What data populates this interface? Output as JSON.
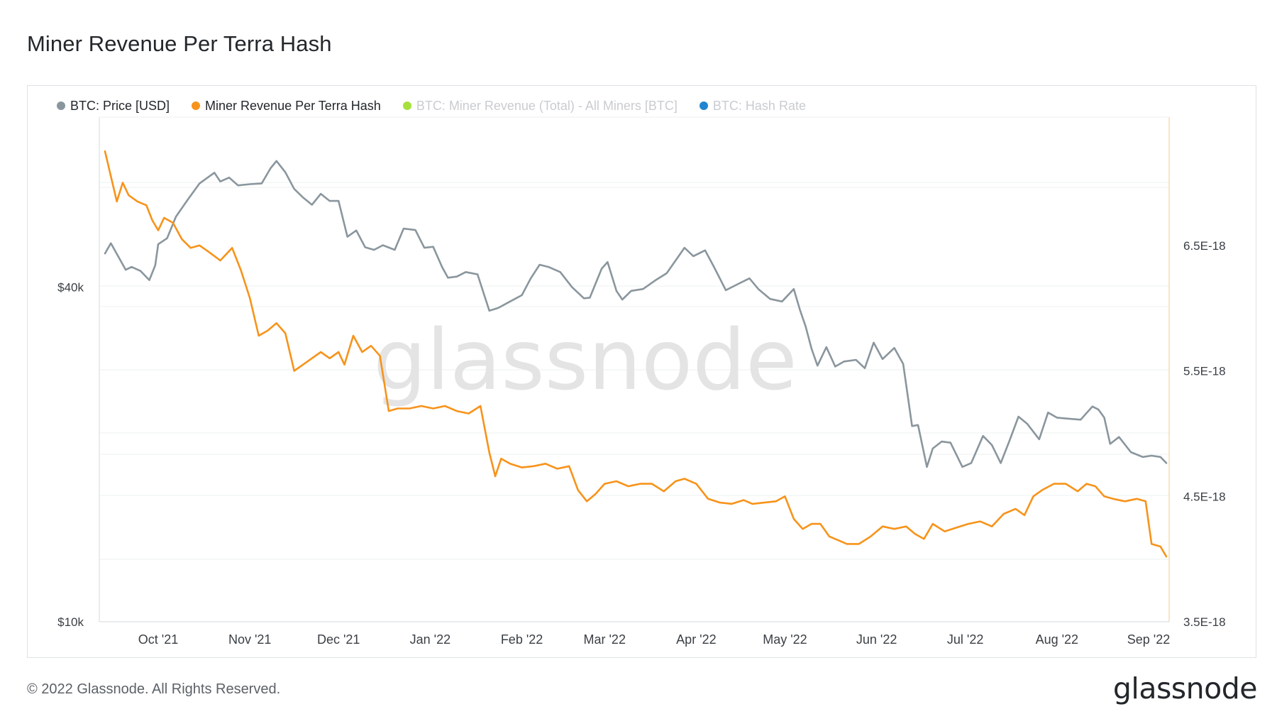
{
  "title": "Miner Revenue Per Terra Hash",
  "footer": "© 2022 Glassnode. All Rights Reserved.",
  "brand": "glassnode",
  "watermark": "glassnode",
  "legend": [
    {
      "label": "BTC: Price [USD]",
      "color": "#8a969d",
      "active": true
    },
    {
      "label": "Miner Revenue Per Terra Hash",
      "color": "#f7931a",
      "active": true
    },
    {
      "label": "BTC: Miner Revenue (Total) - All Miners [BTC]",
      "color": "#a7e03a",
      "active": false
    },
    {
      "label": "BTC: Hash Rate",
      "color": "#2185d0",
      "active": false
    }
  ],
  "chart_data": {
    "type": "line",
    "x_ticks": [
      "Oct '21",
      "Nov '21",
      "Dec '21",
      "Jan '22",
      "Feb '22",
      "Mar '22",
      "Apr '22",
      "May '22",
      "Jun '22",
      "Jul '22",
      "Aug '22",
      "Sep '22"
    ],
    "x_range": [
      "2021-09-13",
      "2022-09-07"
    ],
    "y_left": {
      "scale": "log",
      "ticks": [
        "$40k",
        "$10k"
      ],
      "range": [
        10000,
        80000
      ]
    },
    "y_right": {
      "scale": "linear",
      "ticks": [
        "6.5E-18",
        "5.5E-18",
        "4.5E-18",
        "3.5E-18"
      ],
      "range": [
        3.5e-18,
        7.5e-18
      ]
    },
    "grid": true,
    "series": [
      {
        "name": "BTC: Price [USD]",
        "axis": "left",
        "color": "#8a969d",
        "points": [
          [
            "2021-09-13",
            46000
          ],
          [
            "2021-09-15",
            48000
          ],
          [
            "2021-09-20",
            43000
          ],
          [
            "2021-09-22",
            43500
          ],
          [
            "2021-09-25",
            42800
          ],
          [
            "2021-09-28",
            41200
          ],
          [
            "2021-09-30",
            43800
          ],
          [
            "2021-10-01",
            47800
          ],
          [
            "2021-10-04",
            49000
          ],
          [
            "2021-10-07",
            53600
          ],
          [
            "2021-10-11",
            57500
          ],
          [
            "2021-10-15",
            61500
          ],
          [
            "2021-10-20",
            64300
          ],
          [
            "2021-10-22",
            62000
          ],
          [
            "2021-10-25",
            63000
          ],
          [
            "2021-10-28",
            61000
          ],
          [
            "2021-11-01",
            61300
          ],
          [
            "2021-11-05",
            61500
          ],
          [
            "2021-11-08",
            65500
          ],
          [
            "2021-11-10",
            67500
          ],
          [
            "2021-11-13",
            64400
          ],
          [
            "2021-11-16",
            60100
          ],
          [
            "2021-11-19",
            58000
          ],
          [
            "2021-11-22",
            56300
          ],
          [
            "2021-11-25",
            58900
          ],
          [
            "2021-11-28",
            57200
          ],
          [
            "2021-12-01",
            57200
          ],
          [
            "2021-12-04",
            49300
          ],
          [
            "2021-12-07",
            50600
          ],
          [
            "2021-12-10",
            47200
          ],
          [
            "2021-12-13",
            46700
          ],
          [
            "2021-12-16",
            47600
          ],
          [
            "2021-12-20",
            46700
          ],
          [
            "2021-12-23",
            51000
          ],
          [
            "2021-12-27",
            50700
          ],
          [
            "2021-12-30",
            47100
          ],
          [
            "2022-01-02",
            47300
          ],
          [
            "2022-01-05",
            43500
          ],
          [
            "2022-01-07",
            41600
          ],
          [
            "2022-01-10",
            41800
          ],
          [
            "2022-01-13",
            42600
          ],
          [
            "2022-01-17",
            42200
          ],
          [
            "2022-01-21",
            36300
          ],
          [
            "2022-01-24",
            36700
          ],
          [
            "2022-01-28",
            37700
          ],
          [
            "2022-02-01",
            38700
          ],
          [
            "2022-02-04",
            41500
          ],
          [
            "2022-02-07",
            43900
          ],
          [
            "2022-02-10",
            43500
          ],
          [
            "2022-02-14",
            42600
          ],
          [
            "2022-02-18",
            40000
          ],
          [
            "2022-02-22",
            38200
          ],
          [
            "2022-02-24",
            38300
          ],
          [
            "2022-02-28",
            43200
          ],
          [
            "2022-03-02",
            44400
          ],
          [
            "2022-03-05",
            39400
          ],
          [
            "2022-03-07",
            38000
          ],
          [
            "2022-03-10",
            39400
          ],
          [
            "2022-03-14",
            39700
          ],
          [
            "2022-03-18",
            41100
          ],
          [
            "2022-03-22",
            42400
          ],
          [
            "2022-03-28",
            47100
          ],
          [
            "2022-03-31",
            45500
          ],
          [
            "2022-04-04",
            46600
          ],
          [
            "2022-04-07",
            43500
          ],
          [
            "2022-04-11",
            39500
          ],
          [
            "2022-04-15",
            40500
          ],
          [
            "2022-04-19",
            41500
          ],
          [
            "2022-04-22",
            39700
          ],
          [
            "2022-04-26",
            38100
          ],
          [
            "2022-04-30",
            37700
          ],
          [
            "2022-05-04",
            39700
          ],
          [
            "2022-05-06",
            36500
          ],
          [
            "2022-05-08",
            34000
          ],
          [
            "2022-05-10",
            31000
          ],
          [
            "2022-05-12",
            28900
          ],
          [
            "2022-05-15",
            31200
          ],
          [
            "2022-05-18",
            28800
          ],
          [
            "2022-05-21",
            29400
          ],
          [
            "2022-05-25",
            29600
          ],
          [
            "2022-05-28",
            28600
          ],
          [
            "2022-05-31",
            31800
          ],
          [
            "2022-06-03",
            29700
          ],
          [
            "2022-06-07",
            31100
          ],
          [
            "2022-06-10",
            29100
          ],
          [
            "2022-06-13",
            22500
          ],
          [
            "2022-06-15",
            22600
          ],
          [
            "2022-06-18",
            19000
          ],
          [
            "2022-06-20",
            20500
          ],
          [
            "2022-06-23",
            21100
          ],
          [
            "2022-06-26",
            21000
          ],
          [
            "2022-06-30",
            19000
          ],
          [
            "2022-07-03",
            19300
          ],
          [
            "2022-07-07",
            21600
          ],
          [
            "2022-07-10",
            20800
          ],
          [
            "2022-07-13",
            19300
          ],
          [
            "2022-07-16",
            21200
          ],
          [
            "2022-07-19",
            23400
          ],
          [
            "2022-07-22",
            22700
          ],
          [
            "2022-07-26",
            21300
          ],
          [
            "2022-07-29",
            23800
          ],
          [
            "2022-08-01",
            23300
          ],
          [
            "2022-08-05",
            23200
          ],
          [
            "2022-08-09",
            23100
          ],
          [
            "2022-08-13",
            24400
          ],
          [
            "2022-08-15",
            24100
          ],
          [
            "2022-08-17",
            23300
          ],
          [
            "2022-08-19",
            20900
          ],
          [
            "2022-08-22",
            21500
          ],
          [
            "2022-08-26",
            20200
          ],
          [
            "2022-08-30",
            19800
          ],
          [
            "2022-09-02",
            19900
          ],
          [
            "2022-09-05",
            19800
          ],
          [
            "2022-09-07",
            19300
          ]
        ]
      },
      {
        "name": "Miner Revenue Per Terra Hash",
        "axis": "right",
        "color": "#f7931a",
        "points": [
          [
            "2021-09-13",
            7.25e-18
          ],
          [
            "2021-09-15",
            7.05e-18
          ],
          [
            "2021-09-17",
            6.85e-18
          ],
          [
            "2021-09-19",
            7e-18
          ],
          [
            "2021-09-21",
            6.9e-18
          ],
          [
            "2021-09-24",
            6.85e-18
          ],
          [
            "2021-09-27",
            6.82e-18
          ],
          [
            "2021-09-29",
            6.7e-18
          ],
          [
            "2021-10-01",
            6.62e-18
          ],
          [
            "2021-10-03",
            6.72e-18
          ],
          [
            "2021-10-06",
            6.68e-18
          ],
          [
            "2021-10-09",
            6.55e-18
          ],
          [
            "2021-10-12",
            6.48e-18
          ],
          [
            "2021-10-15",
            6.5e-18
          ],
          [
            "2021-10-18",
            6.45e-18
          ],
          [
            "2021-10-22",
            6.38e-18
          ],
          [
            "2021-10-26",
            6.48e-18
          ],
          [
            "2021-10-29",
            6.3e-18
          ],
          [
            "2021-11-01",
            6.08e-18
          ],
          [
            "2021-11-04",
            5.78e-18
          ],
          [
            "2021-11-07",
            5.82e-18
          ],
          [
            "2021-11-10",
            5.88e-18
          ],
          [
            "2021-11-13",
            5.8e-18
          ],
          [
            "2021-11-16",
            5.5e-18
          ],
          [
            "2021-11-19",
            5.55e-18
          ],
          [
            "2021-11-22",
            5.6e-18
          ],
          [
            "2021-11-25",
            5.65e-18
          ],
          [
            "2021-11-28",
            5.6e-18
          ],
          [
            "2021-12-01",
            5.65e-18
          ],
          [
            "2021-12-03",
            5.55e-18
          ],
          [
            "2021-12-06",
            5.78e-18
          ],
          [
            "2021-12-09",
            5.65e-18
          ],
          [
            "2021-12-12",
            5.7e-18
          ],
          [
            "2021-12-15",
            5.62e-18
          ],
          [
            "2021-12-18",
            5.18e-18
          ],
          [
            "2021-12-21",
            5.2e-18
          ],
          [
            "2021-12-25",
            5.2e-18
          ],
          [
            "2021-12-29",
            5.22e-18
          ],
          [
            "2022-01-02",
            5.2e-18
          ],
          [
            "2022-01-06",
            5.22e-18
          ],
          [
            "2022-01-10",
            5.18e-18
          ],
          [
            "2022-01-14",
            5.16e-18
          ],
          [
            "2022-01-18",
            5.22e-18
          ],
          [
            "2022-01-21",
            4.85e-18
          ],
          [
            "2022-01-23",
            4.66e-18
          ],
          [
            "2022-01-25",
            4.8e-18
          ],
          [
            "2022-01-28",
            4.76e-18
          ],
          [
            "2022-02-01",
            4.73e-18
          ],
          [
            "2022-02-05",
            4.74e-18
          ],
          [
            "2022-02-09",
            4.76e-18
          ],
          [
            "2022-02-13",
            4.72e-18
          ],
          [
            "2022-02-17",
            4.74e-18
          ],
          [
            "2022-02-20",
            4.55e-18
          ],
          [
            "2022-02-23",
            4.46e-18
          ],
          [
            "2022-02-26",
            4.52e-18
          ],
          [
            "2022-03-01",
            4.6e-18
          ],
          [
            "2022-03-05",
            4.62e-18
          ],
          [
            "2022-03-09",
            4.58e-18
          ],
          [
            "2022-03-13",
            4.6e-18
          ],
          [
            "2022-03-17",
            4.6e-18
          ],
          [
            "2022-03-21",
            4.54e-18
          ],
          [
            "2022-03-25",
            4.62e-18
          ],
          [
            "2022-03-28",
            4.64e-18
          ],
          [
            "2022-04-01",
            4.6e-18
          ],
          [
            "2022-04-05",
            4.48e-18
          ],
          [
            "2022-04-09",
            4.45e-18
          ],
          [
            "2022-04-13",
            4.44e-18
          ],
          [
            "2022-04-17",
            4.47e-18
          ],
          [
            "2022-04-20",
            4.44e-18
          ],
          [
            "2022-04-24",
            4.45e-18
          ],
          [
            "2022-04-28",
            4.46e-18
          ],
          [
            "2022-05-01",
            4.5e-18
          ],
          [
            "2022-05-04",
            4.32e-18
          ],
          [
            "2022-05-07",
            4.24e-18
          ],
          [
            "2022-05-10",
            4.28e-18
          ],
          [
            "2022-05-13",
            4.28e-18
          ],
          [
            "2022-05-16",
            4.18e-18
          ],
          [
            "2022-05-19",
            4.15e-18
          ],
          [
            "2022-05-22",
            4.12e-18
          ],
          [
            "2022-05-26",
            4.12e-18
          ],
          [
            "2022-05-30",
            4.18e-18
          ],
          [
            "2022-06-03",
            4.26e-18
          ],
          [
            "2022-06-07",
            4.24e-18
          ],
          [
            "2022-06-11",
            4.26e-18
          ],
          [
            "2022-06-14",
            4.2e-18
          ],
          [
            "2022-06-17",
            4.16e-18
          ],
          [
            "2022-06-20",
            4.28e-18
          ],
          [
            "2022-06-24",
            4.22e-18
          ],
          [
            "2022-06-28",
            4.25e-18
          ],
          [
            "2022-07-02",
            4.28e-18
          ],
          [
            "2022-07-06",
            4.3e-18
          ],
          [
            "2022-07-10",
            4.26e-18
          ],
          [
            "2022-07-14",
            4.36e-18
          ],
          [
            "2022-07-18",
            4.4e-18
          ],
          [
            "2022-07-21",
            4.35e-18
          ],
          [
            "2022-07-24",
            4.5e-18
          ],
          [
            "2022-07-27",
            4.55e-18
          ],
          [
            "2022-07-31",
            4.6e-18
          ],
          [
            "2022-08-04",
            4.6e-18
          ],
          [
            "2022-08-08",
            4.54e-18
          ],
          [
            "2022-08-11",
            4.6e-18
          ],
          [
            "2022-08-14",
            4.58e-18
          ],
          [
            "2022-08-17",
            4.5e-18
          ],
          [
            "2022-08-20",
            4.48e-18
          ],
          [
            "2022-08-24",
            4.46e-18
          ],
          [
            "2022-08-28",
            4.48e-18
          ],
          [
            "2022-08-31",
            4.46e-18
          ],
          [
            "2022-09-02",
            4.12e-18
          ],
          [
            "2022-09-05",
            4.1e-18
          ],
          [
            "2022-09-07",
            4.02e-18
          ]
        ]
      }
    ]
  }
}
